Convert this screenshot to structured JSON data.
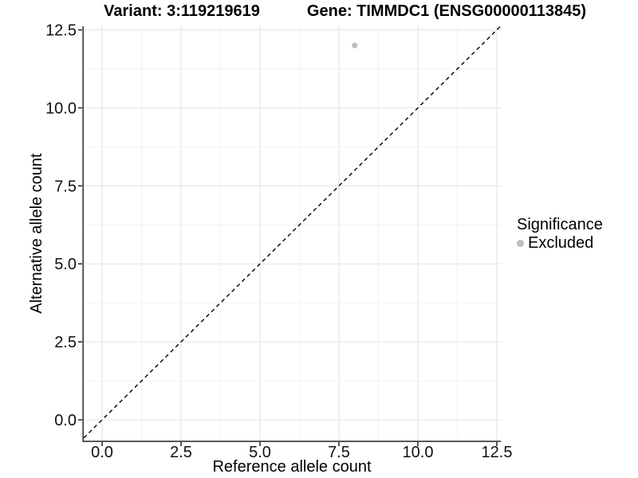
{
  "header": {
    "variant_title": "Variant: 3:119219619",
    "gene_title": "Gene: TIMMDC1 (ENSG00000113845)"
  },
  "axes": {
    "x": {
      "label": "Reference allele count",
      "tick_labels": [
        "0.0",
        "2.5",
        "5.0",
        "7.5",
        "10.0",
        "12.5"
      ]
    },
    "y": {
      "label": "Alternative allele count",
      "tick_labels": [
        "0.0",
        "2.5",
        "5.0",
        "7.5",
        "10.0",
        "12.5"
      ]
    }
  },
  "legend": {
    "title": "Significance",
    "items": [
      {
        "label": "Excluded",
        "marker_color": "#bebebe"
      }
    ]
  },
  "colors": {
    "background": "#ffffff",
    "point": "#bebebe",
    "grid_major": "#e4e4e4",
    "grid_minor": "#f1f1f1",
    "axis_line": "#404040",
    "tick_mark": "#3a3a3a",
    "tick_label": "#111111",
    "identity_line": "#000000"
  },
  "chart_data": {
    "type": "scatter",
    "title": "Variant: 3:119219619 | Gene: TIMMDC1 (ENSG00000113845)",
    "xlabel": "Reference allele count",
    "ylabel": "Alternative allele count",
    "x_ticks": [
      0,
      2.5,
      5,
      7.5,
      10,
      12.5
    ],
    "y_ticks": [
      0,
      2.5,
      5,
      7.5,
      10,
      12.5
    ],
    "xlim": [
      -0.58,
      12.63
    ],
    "ylim": [
      -0.66,
      12.62
    ],
    "grid": "major+minor",
    "legend_position": "right",
    "series": [
      {
        "name": "Excluded",
        "color": "#bebebe",
        "points": [
          {
            "x": 8,
            "y": 12
          }
        ]
      }
    ],
    "reference_line": {
      "type": "identity",
      "slope": 1,
      "intercept": 0,
      "style": "dashed",
      "color": "#000000"
    }
  }
}
